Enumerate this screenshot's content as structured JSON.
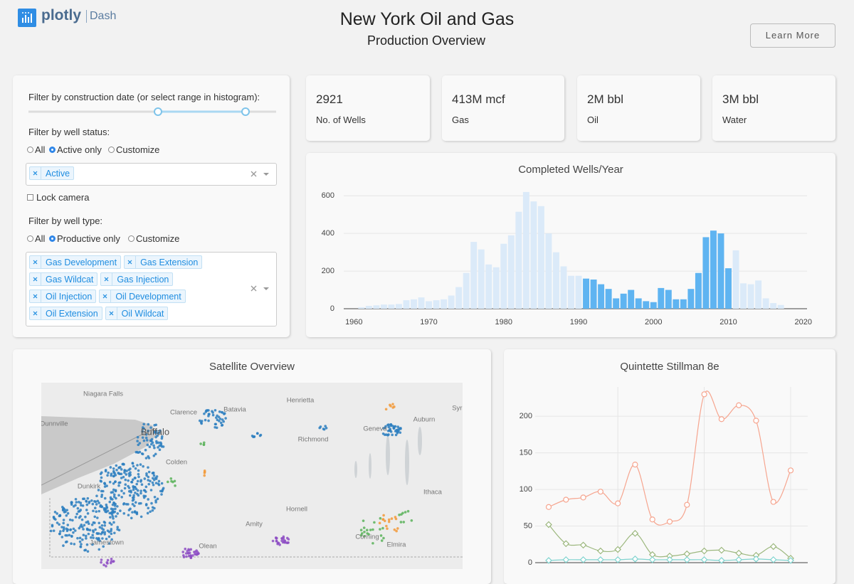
{
  "header": {
    "logo": "plotly",
    "logo_sub": "Dash",
    "title": "New York Oil and Gas",
    "subtitle": "Production Overview",
    "button": "Learn More"
  },
  "controls": {
    "date_label": "Filter by construction date (or select range in histogram):",
    "status": {
      "label": "Filter by well status:",
      "options": [
        "All",
        "Active only",
        "Customize"
      ],
      "selected": 1,
      "chips": [
        "Active"
      ]
    },
    "lock_camera": "Lock camera",
    "type": {
      "label": "Filter by well type:",
      "options": [
        "All",
        "Productive only",
        "Customize"
      ],
      "selected": 1,
      "chips": [
        "Gas Development",
        "Gas Extension",
        "Gas Wildcat",
        "Gas Injection",
        "Oil Injection",
        "Oil Development",
        "Oil Extension",
        "Oil Wildcat"
      ]
    }
  },
  "stats": [
    {
      "value": 2921,
      "label": "No. of Wells"
    },
    {
      "value": "413M mcf",
      "label": "Gas"
    },
    {
      "value": "2M bbl",
      "label": "Oil"
    },
    {
      "value": "3M bbl",
      "label": "Water"
    }
  ],
  "map": {
    "title": "Satellite Overview",
    "places": [
      "Niagara Falls",
      "Clarence",
      "Batavia",
      "Henrietta",
      "Dunnville",
      "Buffalo",
      "Richmond",
      "Geneva",
      "Auburn",
      "Colden",
      "Dunkirk",
      "Ithaca",
      "Hornell",
      "Amity",
      "Corning",
      "Elmira",
      "Jamestown",
      "Olean",
      "Syracuse"
    ]
  },
  "chart_data": [
    {
      "type": "bar",
      "title": "Completed Wells/Year",
      "x": [
        1961,
        1962,
        1963,
        1964,
        1965,
        1966,
        1967,
        1968,
        1969,
        1970,
        1971,
        1972,
        1973,
        1974,
        1975,
        1976,
        1977,
        1978,
        1979,
        1980,
        1981,
        1982,
        1983,
        1984,
        1985,
        1986,
        1987,
        1988,
        1989,
        1990,
        1991,
        1992,
        1993,
        1994,
        1995,
        1996,
        1997,
        1998,
        1999,
        2000,
        2001,
        2002,
        2003,
        2004,
        2005,
        2006,
        2007,
        2008,
        2009,
        2010,
        2011,
        2012,
        2013,
        2014,
        2015,
        2016,
        2017
      ],
      "values": [
        8,
        15,
        18,
        22,
        22,
        25,
        45,
        50,
        60,
        40,
        45,
        50,
        70,
        115,
        190,
        355,
        315,
        235,
        220,
        345,
        390,
        515,
        620,
        570,
        545,
        400,
        300,
        225,
        175,
        175,
        160,
        155,
        130,
        105,
        55,
        80,
        100,
        55,
        40,
        35,
        110,
        100,
        50,
        50,
        105,
        190,
        380,
        415,
        400,
        215,
        310,
        135,
        130,
        150,
        55,
        30,
        20
      ],
      "color": "#dbeaf9",
      "selected_color": "#5fb4f1",
      "selected_range": [
        1991,
        2010
      ],
      "xlim": [
        1957.5,
        2020.5
      ],
      "xticks": [
        1960,
        1970,
        1980,
        1990,
        2000,
        2010,
        2020
      ],
      "ylim": [
        0,
        650
      ],
      "yticks": [
        0,
        200,
        400,
        600
      ],
      "grid": true
    },
    {
      "type": "line",
      "title": "Quintette Stillman 8e",
      "categories": [
        null,
        null,
        null,
        null,
        null,
        null,
        null,
        null,
        null,
        null,
        null,
        null,
        null,
        null,
        null
      ],
      "series": [
        {
          "color": "#f6a58f",
          "marker": "circle",
          "values": [
            76,
            86,
            89,
            97,
            81,
            134,
            59,
            56,
            79,
            230,
            196,
            215,
            194,
            83,
            126
          ]
        },
        {
          "color": "#9db87f",
          "marker": "diamond",
          "values": [
            52,
            26,
            24,
            16,
            18,
            40,
            11,
            9,
            12,
            16,
            17,
            13,
            10,
            22,
            6
          ]
        },
        {
          "color": "#7fd3cf",
          "marker": "diamond",
          "values": [
            3,
            4,
            4,
            4,
            4,
            5,
            4,
            4,
            4,
            4,
            3,
            4,
            5,
            4,
            3
          ]
        }
      ],
      "ylim": [
        0,
        240
      ],
      "yticks": [
        0,
        50,
        100,
        150,
        200
      ],
      "grid": true
    }
  ]
}
